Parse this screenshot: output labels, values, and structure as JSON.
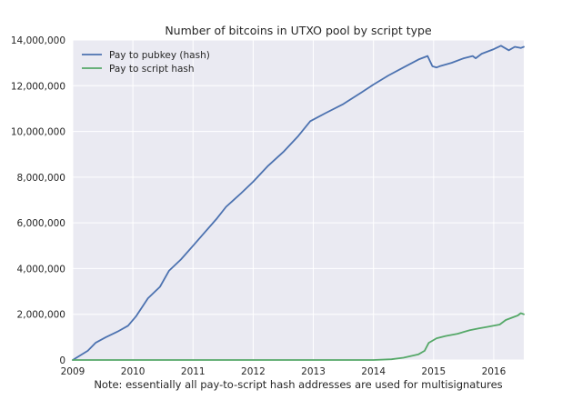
{
  "chart_data": {
    "type": "line",
    "title": "Number of bitcoins in UTXO pool by script type",
    "xlabel": "Note: essentially all pay-to-script hash addresses are used for multisignatures",
    "ylabel": "",
    "xlim": [
      2009.0,
      2016.5
    ],
    "ylim": [
      0,
      14000000
    ],
    "x_ticks": [
      2009,
      2010,
      2011,
      2012,
      2013,
      2014,
      2015,
      2016
    ],
    "x_tick_labels": [
      "2009",
      "2010",
      "2011",
      "2012",
      "2013",
      "2014",
      "2015",
      "2016"
    ],
    "y_ticks": [
      0,
      2000000,
      4000000,
      6000000,
      8000000,
      10000000,
      12000000,
      14000000
    ],
    "y_tick_labels": [
      "0",
      "2,000,000",
      "4,000,000",
      "6,000,000",
      "8,000,000",
      "10,000,000",
      "12,000,000",
      "14,000,000"
    ],
    "grid": true,
    "legend_position": "top-left",
    "background": "#eaeaf2",
    "series": [
      {
        "name": "Pay to pubkey (hash)",
        "color": "#4c72b0",
        "points": [
          [
            2009.0,
            0
          ],
          [
            2009.25,
            400000
          ],
          [
            2009.38,
            750000
          ],
          [
            2009.55,
            1000000
          ],
          [
            2009.75,
            1250000
          ],
          [
            2009.92,
            1500000
          ],
          [
            2010.05,
            1900000
          ],
          [
            2010.25,
            2700000
          ],
          [
            2010.45,
            3200000
          ],
          [
            2010.6,
            3900000
          ],
          [
            2010.8,
            4400000
          ],
          [
            2011.0,
            5000000
          ],
          [
            2011.2,
            5600000
          ],
          [
            2011.4,
            6200000
          ],
          [
            2011.55,
            6700000
          ],
          [
            2011.8,
            7300000
          ],
          [
            2012.0,
            7800000
          ],
          [
            2012.25,
            8500000
          ],
          [
            2012.5,
            9100000
          ],
          [
            2012.75,
            9800000
          ],
          [
            2012.95,
            10450000
          ],
          [
            2013.2,
            10800000
          ],
          [
            2013.5,
            11200000
          ],
          [
            2013.8,
            11700000
          ],
          [
            2014.0,
            12050000
          ],
          [
            2014.25,
            12450000
          ],
          [
            2014.5,
            12800000
          ],
          [
            2014.75,
            13150000
          ],
          [
            2014.9,
            13300000
          ],
          [
            2014.98,
            12850000
          ],
          [
            2015.05,
            12800000
          ],
          [
            2015.1,
            12850000
          ],
          [
            2015.3,
            13000000
          ],
          [
            2015.5,
            13200000
          ],
          [
            2015.65,
            13300000
          ],
          [
            2015.7,
            13200000
          ],
          [
            2015.8,
            13400000
          ],
          [
            2016.0,
            13600000
          ],
          [
            2016.12,
            13750000
          ],
          [
            2016.25,
            13550000
          ],
          [
            2016.35,
            13700000
          ],
          [
            2016.45,
            13650000
          ],
          [
            2016.5,
            13700000
          ]
        ]
      },
      {
        "name": "Pay to script hash",
        "color": "#55a868",
        "points": [
          [
            2009.0,
            0
          ],
          [
            2012.0,
            0
          ],
          [
            2014.0,
            0
          ],
          [
            2014.3,
            30000
          ],
          [
            2014.5,
            100000
          ],
          [
            2014.75,
            250000
          ],
          [
            2014.85,
            400000
          ],
          [
            2014.92,
            750000
          ],
          [
            2015.05,
            950000
          ],
          [
            2015.2,
            1050000
          ],
          [
            2015.4,
            1150000
          ],
          [
            2015.6,
            1300000
          ],
          [
            2015.75,
            1380000
          ],
          [
            2015.9,
            1450000
          ],
          [
            2016.0,
            1500000
          ],
          [
            2016.1,
            1550000
          ],
          [
            2016.2,
            1750000
          ],
          [
            2016.3,
            1850000
          ],
          [
            2016.4,
            1950000
          ],
          [
            2016.45,
            2050000
          ],
          [
            2016.5,
            2000000
          ]
        ]
      }
    ]
  }
}
